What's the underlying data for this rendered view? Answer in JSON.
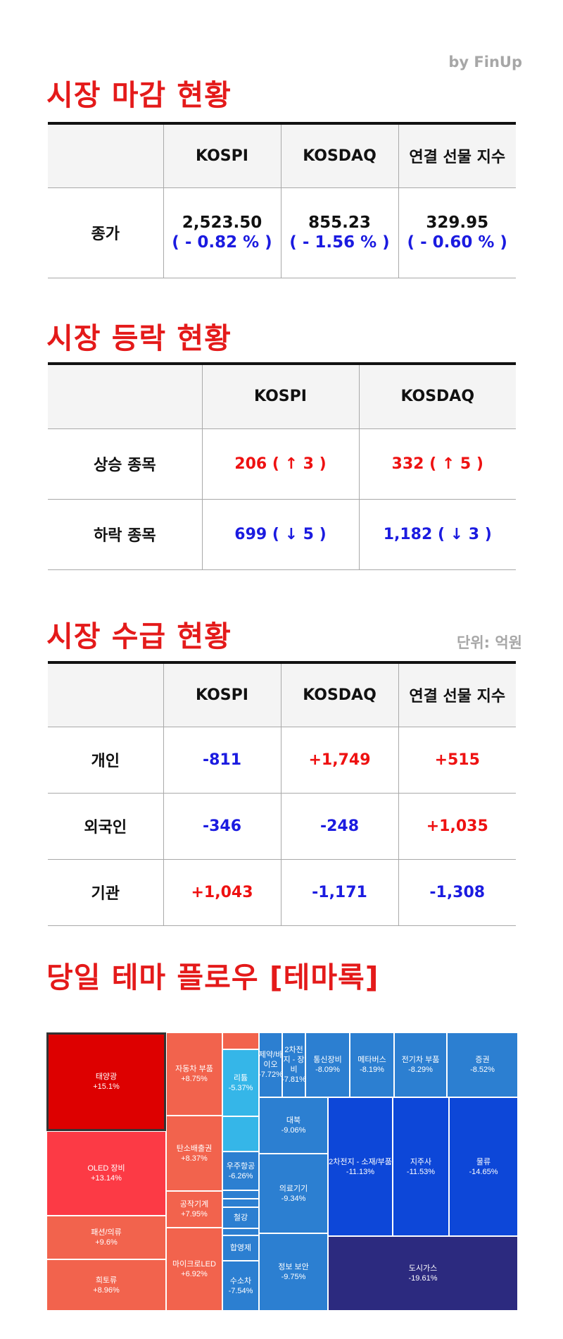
{
  "credit": "by FinUp",
  "close": {
    "title": "시장 마감 현황",
    "headers": [
      "KOSPI",
      "KOSDAQ",
      "연결 선물 지수"
    ],
    "row_label": "종가",
    "values": [
      {
        "value": "2,523.50",
        "change": "( - 0.82 % )"
      },
      {
        "value": "855.23",
        "change": "( - 1.56 % )"
      },
      {
        "value": "329.95",
        "change": "( - 0.60 % )"
      }
    ]
  },
  "breadth": {
    "title": "시장 등락 현황",
    "headers": [
      "KOSPI",
      "KOSDAQ"
    ],
    "rows": [
      {
        "label": "상승 종목",
        "cells": [
          "206 ( ↑ 3 )",
          "332 ( ↑ 5 )"
        ],
        "direction": "up"
      },
      {
        "label": "하락 종목",
        "cells": [
          "699 ( ↓ 5 )",
          "1,182 ( ↓ 3 )"
        ],
        "direction": "down"
      }
    ]
  },
  "flows": {
    "title": "시장 수급 현황",
    "unit": "단위: 억원",
    "headers": [
      "KOSPI",
      "KOSDAQ",
      "연결 선물 지수"
    ],
    "rows": [
      {
        "label": "개인",
        "cells": [
          "-811",
          "+1,749",
          "+515"
        ]
      },
      {
        "label": "외국인",
        "cells": [
          "-346",
          "-248",
          "+1,035"
        ]
      },
      {
        "label": "기관",
        "cells": [
          "+1,043",
          "-1,171",
          "-1,308"
        ]
      }
    ]
  },
  "theme": {
    "title": "당일 테마 플로우 [테마록]",
    "colors": {
      "strong_up": "#dd0000",
      "up": "#fc3a45",
      "mild_up": "#f2634d",
      "light_down": "#35b6e8",
      "down": "#2c7fd1",
      "deep_down": "#0d47d8",
      "deepest_down": "#2c2a7f"
    },
    "tiles": [
      {
        "name": "태양광",
        "pct": "+15.1%",
        "color": "strong_up",
        "highlight": true
      },
      {
        "name": "OLED 장비",
        "pct": "+13.14%",
        "color": "up"
      },
      {
        "name": "패션/의류",
        "pct": "+9.6%",
        "color": "mild_up"
      },
      {
        "name": "희토류",
        "pct": "+8.96%",
        "color": "mild_up"
      },
      {
        "name": "자동차 부품",
        "pct": "+8.75%",
        "color": "mild_up"
      },
      {
        "name": "탄소배출권",
        "pct": "+8.37%",
        "color": "mild_up"
      },
      {
        "name": "공작기계",
        "pct": "+7.95%",
        "color": "mild_up"
      },
      {
        "name": "마이크로LED",
        "pct": "+6.92%",
        "color": "mild_up"
      },
      {
        "name": "",
        "pct": "",
        "color": "mild_up"
      },
      {
        "name": "리튬",
        "pct": "-5.37%",
        "color": "light_down"
      },
      {
        "name": "",
        "pct": "",
        "color": "light_down"
      },
      {
        "name": "우주항공",
        "pct": "-6.26%",
        "color": "down"
      },
      {
        "name": "",
        "pct": "",
        "color": "down"
      },
      {
        "name": "",
        "pct": "",
        "color": "down"
      },
      {
        "name": "철강",
        "pct": "",
        "color": "down"
      },
      {
        "name": "",
        "pct": "",
        "color": "down"
      },
      {
        "name": "합영제",
        "pct": "",
        "color": "down"
      },
      {
        "name": "수소차",
        "pct": "-7.54%",
        "color": "down"
      },
      {
        "name": "제약/바이오",
        "pct": "-7.72%",
        "color": "down"
      },
      {
        "name": "2차전지 - 장비",
        "pct": "-7.81%",
        "color": "down"
      },
      {
        "name": "통신장비",
        "pct": "-8.09%",
        "color": "down"
      },
      {
        "name": "메타버스",
        "pct": "-8.19%",
        "color": "down"
      },
      {
        "name": "전기차 부품",
        "pct": "-8.29%",
        "color": "down"
      },
      {
        "name": "증권",
        "pct": "-8.52%",
        "color": "down"
      },
      {
        "name": "대북",
        "pct": "-9.06%",
        "color": "down"
      },
      {
        "name": "의료기기",
        "pct": "-9.34%",
        "color": "down"
      },
      {
        "name": "정보 보안",
        "pct": "-9.75%",
        "color": "down"
      },
      {
        "name": "2차전지 - 소재/부품",
        "pct": "-11.13%",
        "color": "deep_down"
      },
      {
        "name": "지주사",
        "pct": "-11.53%",
        "color": "deep_down"
      },
      {
        "name": "물류",
        "pct": "-14.65%",
        "color": "deep_down"
      },
      {
        "name": "도시가스",
        "pct": "-19.61%",
        "color": "deepest_down"
      }
    ]
  }
}
